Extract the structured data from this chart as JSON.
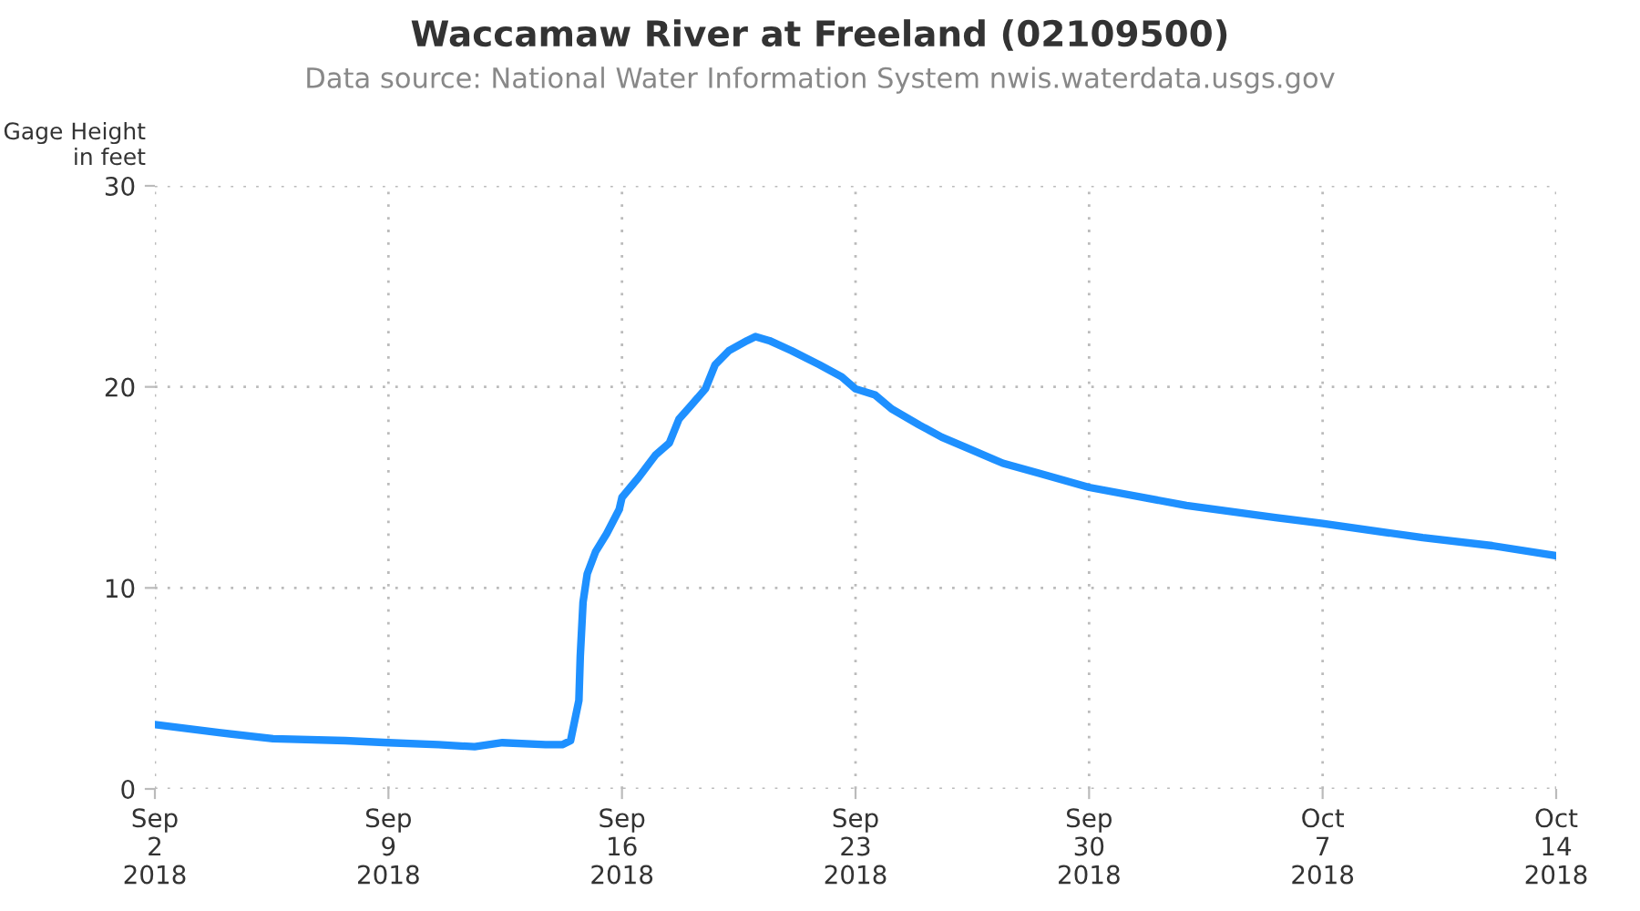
{
  "chart_data": {
    "type": "line",
    "title": "Waccamaw River at Freeland (02109500)",
    "subtitle": "Data source: National Water Information System nwis.waterdata.usgs.gov",
    "ylabel": "Gage Height\nin feet",
    "x": [
      "2018-09-02T00:00",
      "2018-09-03T22:00",
      "2018-09-05T13:00",
      "2018-09-07T17:00",
      "2018-09-09T00:00",
      "2018-09-10T12:00",
      "2018-09-11T14:00",
      "2018-09-12T10:00",
      "2018-09-13T17:00",
      "2018-09-14T05:00",
      "2018-09-14T11:00",
      "2018-09-14T17:00",
      "2018-09-14T18:00",
      "2018-09-14T20:00",
      "2018-09-14T23:00",
      "2018-09-15T05:00",
      "2018-09-15T13:00",
      "2018-09-15T22:00",
      "2018-09-16T00:00",
      "2018-09-16T12:00",
      "2018-09-17T00:00",
      "2018-09-17T10:00",
      "2018-09-17T17:00",
      "2018-09-18T02:00",
      "2018-09-18T12:00",
      "2018-09-18T19:00",
      "2018-09-19T05:00",
      "2018-09-19T18:00",
      "2018-09-20T00:00",
      "2018-09-20T10:00",
      "2018-09-21T02:00",
      "2018-09-21T22:00",
      "2018-09-22T14:00",
      "2018-09-23T00:00",
      "2018-09-23T14:00",
      "2018-09-24T02:00",
      "2018-09-24T22:00",
      "2018-09-25T14:00",
      "2018-09-26T07:00",
      "2018-09-27T10:00",
      "2018-09-28T12:00",
      "2018-09-30T00:00",
      "2018-10-02T22:00",
      "2018-10-05T14:00",
      "2018-10-07T00:00",
      "2018-10-10T00:00",
      "2018-10-12T02:00",
      "2018-10-14T00:00"
    ],
    "series": [
      {
        "color": "#1e90ff",
        "values": [
          3.2,
          2.8,
          2.5,
          2.4,
          2.3,
          2.2,
          2.1,
          2.3,
          2.2,
          2.2,
          2.4,
          4.4,
          6.6,
          9.3,
          10.7,
          11.8,
          12.7,
          13.9,
          14.5,
          15.5,
          16.6,
          17.2,
          18.4,
          19.1,
          19.9,
          21.1,
          21.8,
          22.3,
          22.5,
          22.3,
          21.8,
          21.1,
          20.5,
          19.9,
          19.6,
          18.9,
          18.1,
          17.5,
          17.0,
          16.2,
          15.7,
          15.0,
          14.1,
          13.5,
          13.2,
          12.5,
          12.1,
          11.6
        ]
      }
    ],
    "xlim": [
      "2018-09-02",
      "2018-10-14"
    ],
    "xticks": [
      {
        "value": "2018-09-02",
        "label": "Sep\n2\n2018"
      },
      {
        "value": "2018-09-09",
        "label": "Sep\n9\n2018"
      },
      {
        "value": "2018-09-16",
        "label": "Sep\n16\n2018"
      },
      {
        "value": "2018-09-23",
        "label": "Sep\n23\n2018"
      },
      {
        "value": "2018-09-30",
        "label": "Sep\n30\n2018"
      },
      {
        "value": "2018-10-07",
        "label": "Oct\n7\n2018"
      },
      {
        "value": "2018-10-14",
        "label": "Oct\n14\n2018"
      }
    ],
    "ylim": [
      0,
      30
    ],
    "yticks": [
      0,
      10,
      20,
      30
    ],
    "grid": true,
    "line_style": "solid",
    "marker": "none"
  }
}
